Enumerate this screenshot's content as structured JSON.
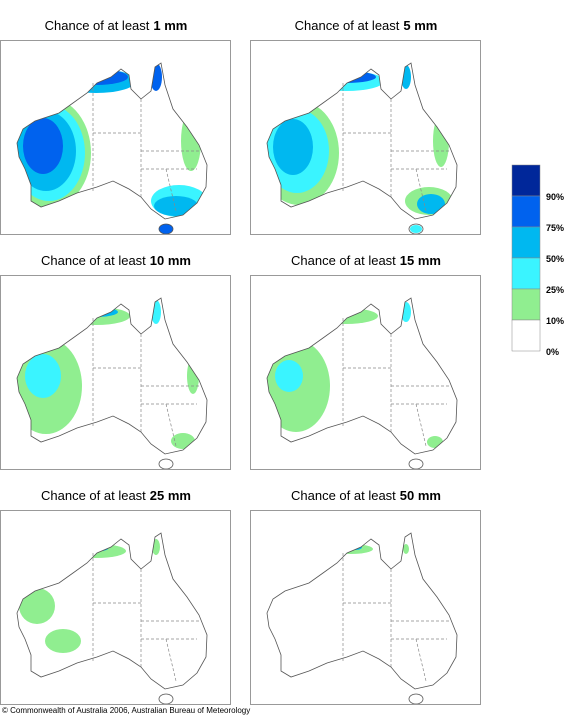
{
  "panels": [
    {
      "prefix": "Chance of at least",
      "amount": "1 mm"
    },
    {
      "prefix": "Chance of at least",
      "amount": "5 mm"
    },
    {
      "prefix": "Chance of at least",
      "amount": "10 mm"
    },
    {
      "prefix": "Chance of at least",
      "amount": "15 mm"
    },
    {
      "prefix": "Chance of at least",
      "amount": "25 mm"
    },
    {
      "prefix": "Chance of at least",
      "amount": "50 mm"
    }
  ],
  "legend": {
    "labels": [
      "90%",
      "75%",
      "50%",
      "25%",
      "10%",
      "0%"
    ],
    "colors": [
      "#00279a",
      "#0062ee",
      "#00b8f0",
      "#3af4ff",
      "#90ee90",
      "#ffffff"
    ]
  },
  "footer": "© Commonwealth of Australia 2006, Australian Bureau of Meteorology"
}
